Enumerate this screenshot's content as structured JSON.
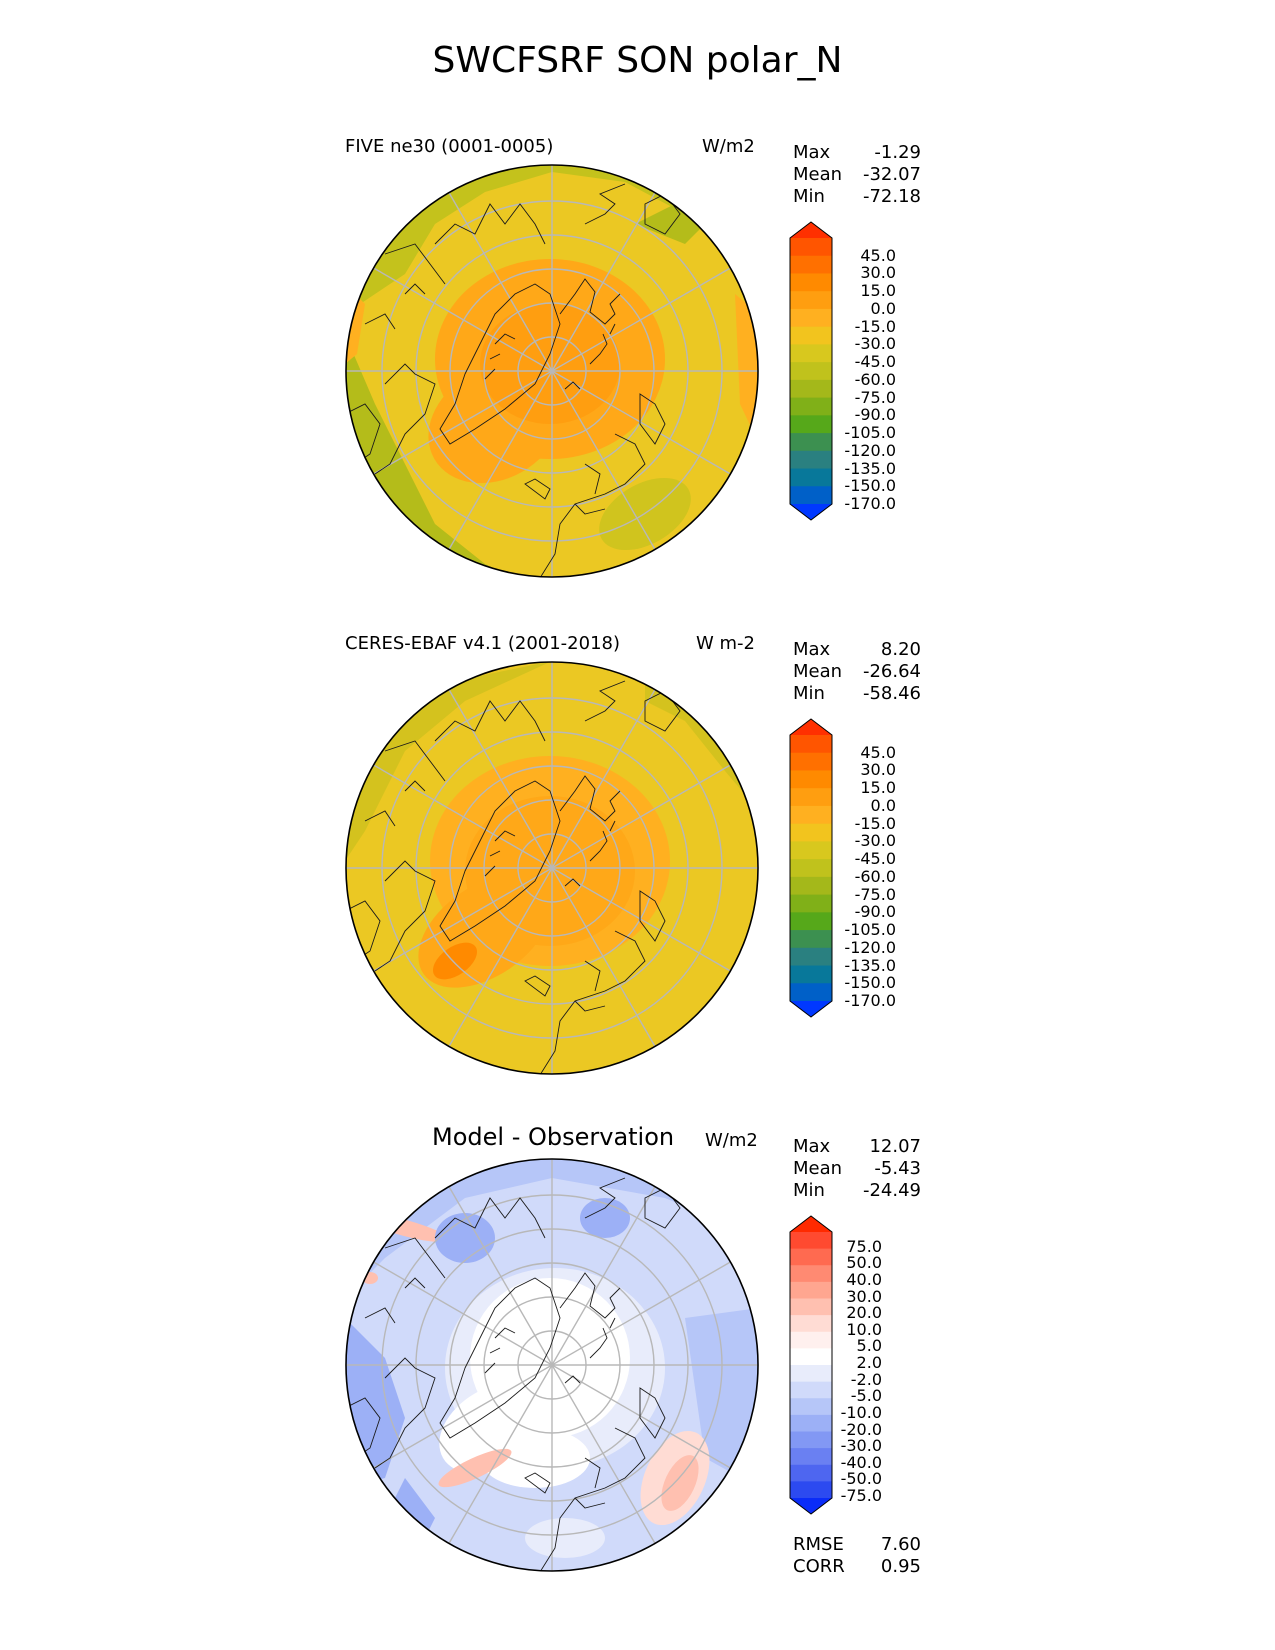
{
  "title": "SWCFSRF SON polar_N",
  "panels": [
    {
      "id": "model",
      "label": "FIVE ne30 (0001-0005)",
      "units": "W/m2",
      "stats": [
        {
          "name": "Max",
          "value": "-1.29"
        },
        {
          "name": "Mean",
          "value": "-32.07"
        },
        {
          "name": "Min",
          "value": "-72.18"
        }
      ],
      "colorbar": {
        "labels": [
          "45.0",
          "30.0",
          "15.0",
          "0.0",
          "-15.0",
          "-30.0",
          "-45.0",
          "-60.0",
          "-75.0",
          "-90.0",
          "-105.0",
          "-120.0",
          "-135.0",
          "-150.0",
          "-170.0"
        ],
        "colors": [
          "#ff3000",
          "#ff5500",
          "#ff7000",
          "#ff8a00",
          "#ff9e10",
          "#ffb020",
          "#f2c41e",
          "#d8c81e",
          "#c0c21c",
          "#a4b81a",
          "#80b018",
          "#56a81a",
          "#3c9050",
          "#2a8080",
          "#08789a",
          "#0060c8",
          "#0038ff"
        ]
      }
    },
    {
      "id": "obs",
      "label": "CERES-EBAF v4.1 (2001-2018)",
      "units": "W m-2",
      "stats": [
        {
          "name": "Max",
          "value": "8.20"
        },
        {
          "name": "Mean",
          "value": "-26.64"
        },
        {
          "name": "Min",
          "value": "-58.46"
        }
      ],
      "colorbar": {
        "labels": [
          "45.0",
          "30.0",
          "15.0",
          "0.0",
          "-15.0",
          "-30.0",
          "-45.0",
          "-60.0",
          "-75.0",
          "-90.0",
          "-105.0",
          "-120.0",
          "-135.0",
          "-150.0",
          "-170.0"
        ],
        "colors": [
          "#ff3000",
          "#ff5500",
          "#ff7000",
          "#ff8a00",
          "#ff9e10",
          "#ffb020",
          "#f2c41e",
          "#d8c81e",
          "#c0c21c",
          "#a4b81a",
          "#80b018",
          "#56a81a",
          "#3c9050",
          "#2a8080",
          "#08789a",
          "#0060c8",
          "#0038ff"
        ]
      }
    },
    {
      "id": "diff",
      "label": "Model - Observation",
      "units": "W/m2",
      "stats": [
        {
          "name": "Max",
          "value": "12.07"
        },
        {
          "name": "Mean",
          "value": "-5.43"
        },
        {
          "name": "Min",
          "value": "-24.49"
        }
      ],
      "extra_stats": [
        {
          "name": "RMSE",
          "value": "7.60"
        },
        {
          "name": "CORR",
          "value": "0.95"
        }
      ],
      "colorbar": {
        "labels": [
          "75.0",
          "50.0",
          "40.0",
          "30.0",
          "20.0",
          "10.0",
          "5.0",
          "2.0",
          "-2.0",
          "-5.0",
          "-10.0",
          "-20.0",
          "-30.0",
          "-40.0",
          "-50.0",
          "-75.0"
        ],
        "colors": [
          "#ff2a00",
          "#ff4a30",
          "#ff6a50",
          "#ff8a72",
          "#ffa690",
          "#ffc0b0",
          "#ffdcd4",
          "#fff0ee",
          "#ffffff",
          "#e8ecfb",
          "#d0dafa",
          "#b6c6f8",
          "#9cb0f6",
          "#8298f4",
          "#6a80f2",
          "#4e66f0",
          "#2c4af0",
          "#0a2cf8"
        ]
      }
    }
  ],
  "chart_data": [
    {
      "type": "heatmap",
      "projection": "north-polar-stereographic",
      "title": "FIVE ne30 (0001-0005)",
      "units": "W/m2",
      "max": -1.29,
      "mean": -32.07,
      "min": -72.18,
      "levels": [
        -170,
        -150,
        -135,
        -120,
        -105,
        -90,
        -75,
        -60,
        -45,
        -30,
        -15,
        0,
        15,
        30,
        45
      ]
    },
    {
      "type": "heatmap",
      "projection": "north-polar-stereographic",
      "title": "CERES-EBAF v4.1 (2001-2018)",
      "units": "W m-2",
      "max": 8.2,
      "mean": -26.64,
      "min": -58.46,
      "levels": [
        -170,
        -150,
        -135,
        -120,
        -105,
        -90,
        -75,
        -60,
        -45,
        -30,
        -15,
        0,
        15,
        30,
        45
      ]
    },
    {
      "type": "heatmap",
      "projection": "north-polar-stereographic",
      "title": "Model - Observation",
      "units": "W/m2",
      "max": 12.07,
      "mean": -5.43,
      "min": -24.49,
      "rmse": 7.6,
      "corr": 0.95,
      "levels": [
        -75,
        -50,
        -40,
        -30,
        -20,
        -10,
        -5,
        -2,
        2,
        5,
        10,
        20,
        30,
        40,
        50,
        75
      ]
    }
  ]
}
